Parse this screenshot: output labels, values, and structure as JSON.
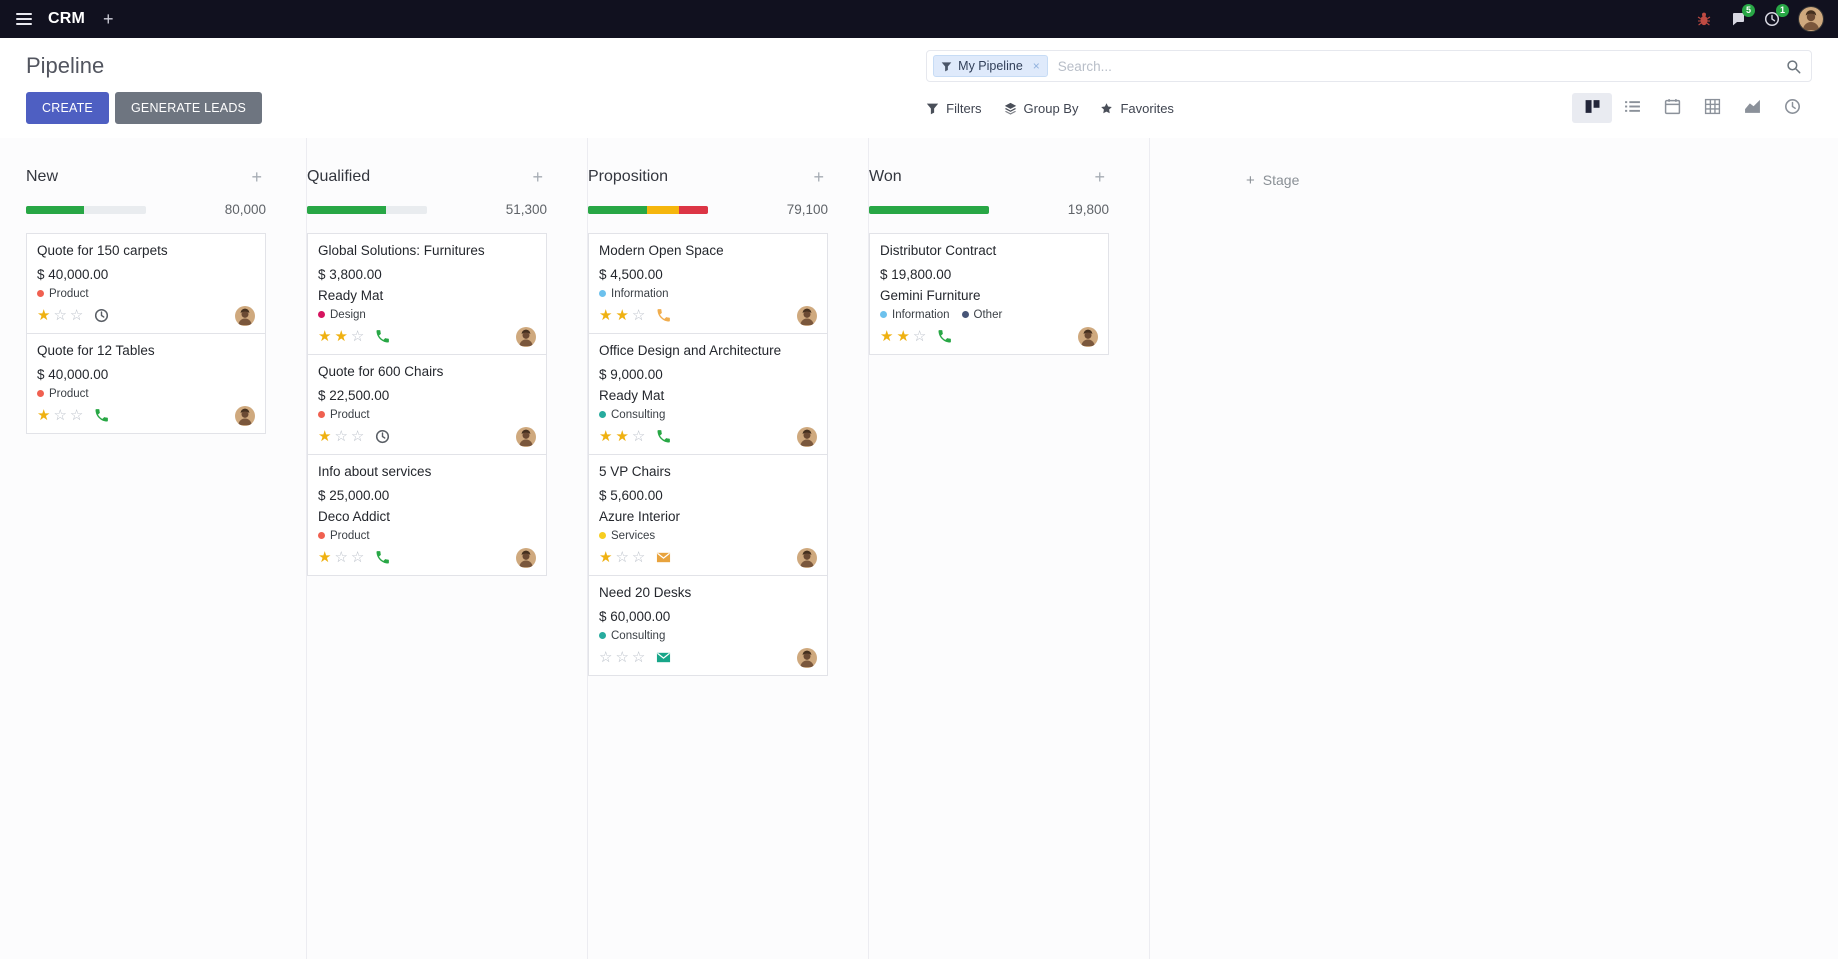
{
  "topbar": {
    "brand": "CRM",
    "messages_badge": "5",
    "activities_badge": "1"
  },
  "header": {
    "title": "Pipeline",
    "facet_label": "My Pipeline",
    "facet_remove": "×",
    "search_placeholder": "Search..."
  },
  "actions": {
    "create": "CREATE",
    "generate_leads": "GENERATE LEADS",
    "filters": "Filters",
    "group_by": "Group By",
    "favorites": "Favorites",
    "add_stage": "Stage"
  },
  "colors": {
    "topbar_bg": "#11111f",
    "primary_button": "#4e5fc2",
    "secondary_button": "#6e7580",
    "badge_green": "#28a745",
    "star_gold": "#efb111",
    "progress_green": "#28a745",
    "progress_yellow": "#f5b60d",
    "progress_red": "#dc3545"
  },
  "view_switcher": {
    "active": "kanban",
    "views": [
      "kanban",
      "list",
      "calendar",
      "pivot",
      "graph",
      "activity"
    ]
  },
  "columns": [
    {
      "name": "New",
      "total": "80,000",
      "progress": [
        {
          "color": "#28a745",
          "pct": 48
        }
      ],
      "cards": [
        {
          "title": "Quote for 150 carpets",
          "amount": "$ 40,000.00",
          "tags": [
            {
              "label": "Product",
              "color": "#f06050"
            }
          ],
          "stars": 1,
          "activity": {
            "icon": "clock",
            "color": "#585d64"
          }
        },
        {
          "title": "Quote for 12 Tables",
          "amount": "$ 40,000.00",
          "tags": [
            {
              "label": "Product",
              "color": "#f06050"
            }
          ],
          "stars": 1,
          "activity": {
            "icon": "phone",
            "color": "#28a745"
          }
        }
      ]
    },
    {
      "name": "Qualified",
      "total": "51,300",
      "progress": [
        {
          "color": "#28a745",
          "pct": 66
        }
      ],
      "cards": [
        {
          "title": "Global Solutions: Furnitures",
          "amount": "$ 3,800.00",
          "partner": "Ready Mat",
          "tags": [
            {
              "label": "Design",
              "color": "#d6145f"
            }
          ],
          "stars": 2,
          "activity": {
            "icon": "phone",
            "color": "#28a745"
          }
        },
        {
          "title": "Quote for 600 Chairs",
          "amount": "$ 22,500.00",
          "tags": [
            {
              "label": "Product",
              "color": "#f06050"
            }
          ],
          "stars": 1,
          "activity": {
            "icon": "clock",
            "color": "#585d64"
          }
        },
        {
          "title": "Info about services",
          "amount": "$ 25,000.00",
          "partner": "Deco Addict",
          "tags": [
            {
              "label": "Product",
              "color": "#f06050"
            }
          ],
          "stars": 1,
          "activity": {
            "icon": "phone",
            "color": "#28a745"
          }
        }
      ]
    },
    {
      "name": "Proposition",
      "total": "79,100",
      "progress": [
        {
          "color": "#28a745",
          "pct": 49
        },
        {
          "color": "#f5b60d",
          "pct": 27
        },
        {
          "color": "#dc3545",
          "pct": 24
        }
      ],
      "cards": [
        {
          "title": "Modern Open Space",
          "amount": "$ 4,500.00",
          "tags": [
            {
              "label": "Information",
              "color": "#6cc1ed"
            }
          ],
          "stars": 2,
          "activity": {
            "icon": "phone",
            "color": "#f0ad4e"
          }
        },
        {
          "title": "Office Design and Architecture",
          "amount": "$ 9,000.00",
          "partner": "Ready Mat",
          "tags": [
            {
              "label": "Consulting",
              "color": "#27ab9e"
            }
          ],
          "stars": 2,
          "activity": {
            "icon": "phone",
            "color": "#28a745"
          }
        },
        {
          "title": "5 VP Chairs",
          "amount": "$ 5,600.00",
          "partner": "Azure Interior",
          "tags": [
            {
              "label": "Services",
              "color": "#f7cd1f"
            }
          ],
          "stars": 1,
          "activity": {
            "icon": "envelope",
            "color": "#e8a33d"
          }
        },
        {
          "title": "Need 20 Desks",
          "amount": "$ 60,000.00",
          "tags": [
            {
              "label": "Consulting",
              "color": "#27ab9e"
            }
          ],
          "stars": 0,
          "activity": {
            "icon": "envelope",
            "color": "#18a689"
          }
        }
      ]
    },
    {
      "name": "Won",
      "total": "19,800",
      "progress": [
        {
          "color": "#28a745",
          "pct": 100
        }
      ],
      "cards": [
        {
          "title": "Distributor Contract",
          "amount": "$ 19,800.00",
          "partner": "Gemini Furniture",
          "tags": [
            {
              "label": "Information",
              "color": "#6cc1ed"
            },
            {
              "label": "Other",
              "color": "#475577"
            }
          ],
          "stars": 2,
          "activity": {
            "icon": "phone",
            "color": "#28a745"
          }
        }
      ]
    }
  ]
}
